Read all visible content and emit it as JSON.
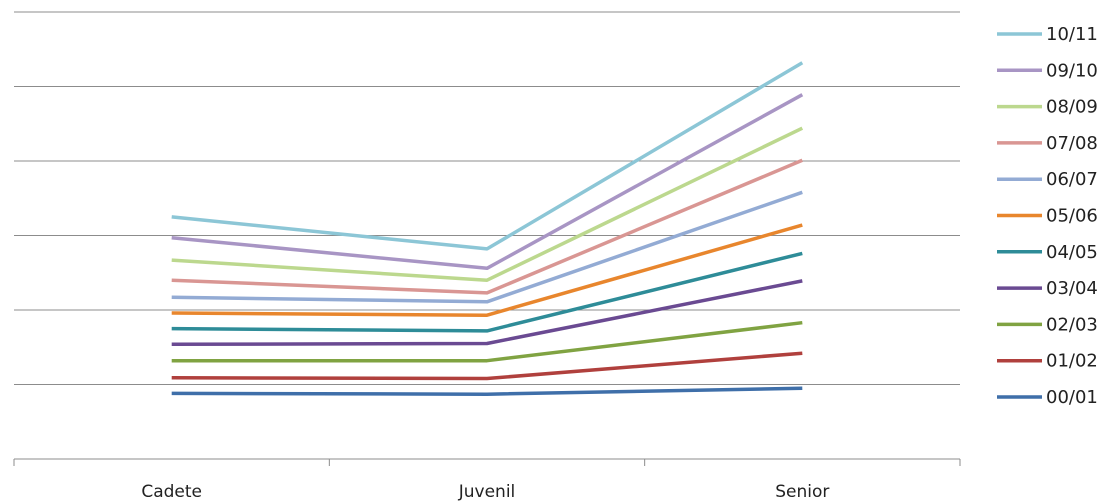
{
  "chart_data": {
    "type": "line",
    "title": "",
    "xlabel": "",
    "ylabel": "",
    "categories": [
      "Cadete",
      "Juvenil",
      "Senior"
    ],
    "ylim": [
      0,
      60
    ],
    "grid": "horizontal",
    "legend_position": "right",
    "series": [
      {
        "name": "10/11",
        "color": "#8cc6d6",
        "values": [
          32.5,
          28.2,
          53.2
        ]
      },
      {
        "name": "09/10",
        "color": "#a895c4",
        "values": [
          29.7,
          25.6,
          48.9
        ]
      },
      {
        "name": "08/09",
        "color": "#bcd88e",
        "values": [
          26.7,
          24.0,
          44.4
        ]
      },
      {
        "name": "07/08",
        "color": "#d99693",
        "values": [
          24.0,
          22.3,
          40.1
        ]
      },
      {
        "name": "06/07",
        "color": "#93abd4",
        "values": [
          21.7,
          21.1,
          35.8
        ]
      },
      {
        "name": "05/06",
        "color": "#e8862d",
        "values": [
          19.6,
          19.3,
          31.4
        ]
      },
      {
        "name": "04/05",
        "color": "#2e8c98",
        "values": [
          17.5,
          17.2,
          27.6
        ]
      },
      {
        "name": "03/04",
        "color": "#6a4a92",
        "values": [
          15.4,
          15.5,
          23.9
        ]
      },
      {
        "name": "02/03",
        "color": "#80a342",
        "values": [
          13.2,
          13.2,
          18.3
        ]
      },
      {
        "name": "01/02",
        "color": "#b0403d",
        "values": [
          10.9,
          10.8,
          14.2
        ]
      },
      {
        "name": "00/01",
        "color": "#3f6fa9",
        "values": [
          8.8,
          8.7,
          9.5
        ]
      }
    ]
  }
}
